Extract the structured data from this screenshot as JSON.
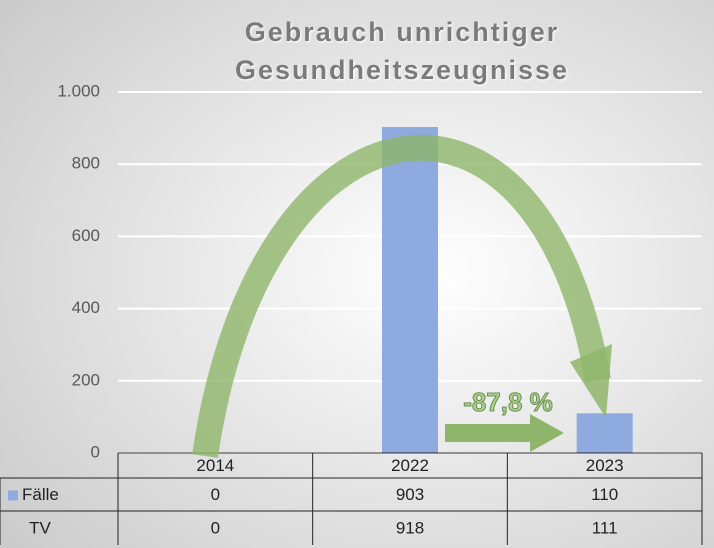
{
  "chart_data": {
    "type": "bar",
    "title": [
      "Gebrauch unrichtiger",
      "Gesundheitszeugnisse"
    ],
    "categories": [
      "2014",
      "2022",
      "2023"
    ],
    "series": [
      {
        "name": "Fälle",
        "color": "#8eaadf",
        "values": [
          0,
          903,
          110
        ]
      },
      {
        "name": "TV",
        "values": [
          0,
          918,
          111
        ]
      }
    ],
    "ylim": [
      0,
      1000
    ],
    "yticks": [
      0,
      200,
      400,
      600,
      800,
      {
        "value": 1000,
        "label": "1.000"
      }
    ],
    "grid": true,
    "data_table": true,
    "annotation": "-87,8 %"
  }
}
